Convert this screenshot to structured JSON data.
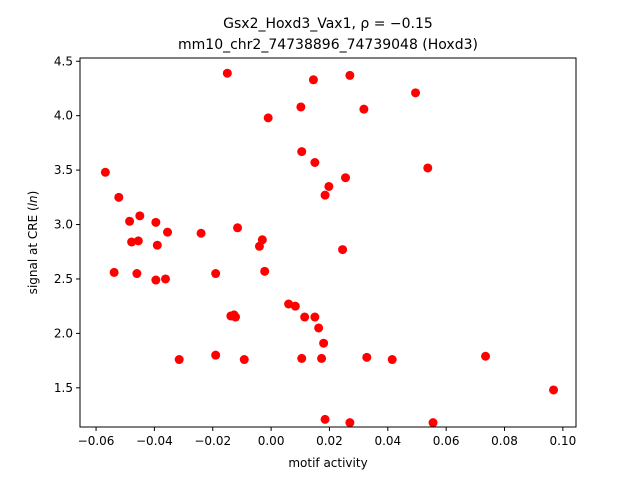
{
  "chart_data": {
    "type": "scatter",
    "title_line1": "Gsx2_Hoxd3_Vax1, ρ = −0.15",
    "title_line2": "mm10_chr2_74738896_74739048 (Hoxd3)",
    "xlabel": "motif activity",
    "ylabel": "signal at CRE (ln)",
    "xlim": [
      -0.0655,
      0.1045
    ],
    "ylim": [
      1.14,
      4.53
    ],
    "xticks": [
      -0.06,
      -0.04,
      -0.02,
      0.0,
      0.02,
      0.04,
      0.06,
      0.08,
      0.1
    ],
    "xtick_labels": [
      "−0.06",
      "−0.04",
      "−0.02",
      "0.00",
      "0.02",
      "0.04",
      "0.06",
      "0.08",
      "0.10"
    ],
    "yticks": [
      1.5,
      2.0,
      2.5,
      3.0,
      3.5,
      4.0,
      4.5
    ],
    "ytick_labels": [
      "1.5",
      "2.0",
      "2.5",
      "3.0",
      "3.5",
      "4.0",
      "4.5"
    ],
    "grid": false,
    "marker_color": "#ff0000",
    "points": [
      {
        "x": -0.0568,
        "y": 3.48
      },
      {
        "x": -0.0522,
        "y": 3.25
      },
      {
        "x": -0.0485,
        "y": 3.03
      },
      {
        "x": -0.045,
        "y": 3.08
      },
      {
        "x": -0.0478,
        "y": 2.84
      },
      {
        "x": -0.0455,
        "y": 2.85
      },
      {
        "x": -0.0395,
        "y": 3.02
      },
      {
        "x": -0.039,
        "y": 2.81
      },
      {
        "x": -0.0355,
        "y": 2.93
      },
      {
        "x": -0.0538,
        "y": 2.56
      },
      {
        "x": -0.046,
        "y": 2.55
      },
      {
        "x": -0.0395,
        "y": 2.49
      },
      {
        "x": -0.0362,
        "y": 2.5
      },
      {
        "x": -0.0315,
        "y": 1.76
      },
      {
        "x": -0.024,
        "y": 2.92
      },
      {
        "x": -0.019,
        "y": 2.55
      },
      {
        "x": -0.019,
        "y": 1.8
      },
      {
        "x": -0.015,
        "y": 4.39
      },
      {
        "x": -0.0115,
        "y": 2.97
      },
      {
        "x": -0.0138,
        "y": 2.16
      },
      {
        "x": -0.0127,
        "y": 2.17
      },
      {
        "x": -0.0122,
        "y": 2.15
      },
      {
        "x": -0.0092,
        "y": 1.76
      },
      {
        "x": -0.004,
        "y": 2.8
      },
      {
        "x": -0.003,
        "y": 2.86
      },
      {
        "x": -0.0022,
        "y": 2.57
      },
      {
        "x": -0.001,
        "y": 3.98
      },
      {
        "x": 0.006,
        "y": 2.27
      },
      {
        "x": 0.0083,
        "y": 2.25
      },
      {
        "x": 0.0102,
        "y": 4.08
      },
      {
        "x": 0.0105,
        "y": 3.67
      },
      {
        "x": 0.0105,
        "y": 1.77
      },
      {
        "x": 0.0115,
        "y": 2.15
      },
      {
        "x": 0.0145,
        "y": 4.33
      },
      {
        "x": 0.015,
        "y": 3.57
      },
      {
        "x": 0.015,
        "y": 2.15
      },
      {
        "x": 0.0163,
        "y": 2.05
      },
      {
        "x": 0.0173,
        "y": 1.77
      },
      {
        "x": 0.018,
        "y": 1.91
      },
      {
        "x": 0.0185,
        "y": 3.27
      },
      {
        "x": 0.0198,
        "y": 3.35
      },
      {
        "x": 0.0185,
        "y": 1.21
      },
      {
        "x": 0.0245,
        "y": 2.77
      },
      {
        "x": 0.0255,
        "y": 3.43
      },
      {
        "x": 0.027,
        "y": 4.37
      },
      {
        "x": 0.027,
        "y": 1.18
      },
      {
        "x": 0.0318,
        "y": 4.06
      },
      {
        "x": 0.0328,
        "y": 1.78
      },
      {
        "x": 0.0415,
        "y": 1.76
      },
      {
        "x": 0.0495,
        "y": 4.21
      },
      {
        "x": 0.0537,
        "y": 3.52
      },
      {
        "x": 0.0555,
        "y": 1.18
      },
      {
        "x": 0.0735,
        "y": 1.79
      },
      {
        "x": 0.0968,
        "y": 1.48
      }
    ]
  }
}
